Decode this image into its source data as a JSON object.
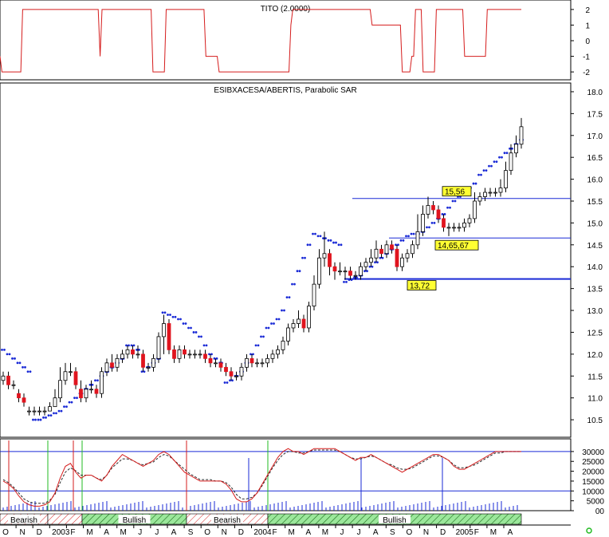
{
  "colors": {
    "up": "#ffffff",
    "down": "#e0141e",
    "candle_edge": "#000000",
    "sar": "#1a2ad6",
    "level_line": "#1a2ad6",
    "tito": "#d51c1c",
    "stoch_k": "#d51c1c",
    "stoch_d": "#2a2a2a",
    "marker_green": "#22bb22",
    "marker_red": "#d51c1c",
    "volume": "#1a2ad6",
    "label_bg": "#ffff33",
    "band_fill": "#9be79b",
    "band_stroke": "#1e6e1e"
  },
  "tito_panel": {
    "title": "TITO (2.0000)",
    "ylim": [
      -2.3,
      2.3
    ],
    "ticks": [
      "2",
      "1",
      "0",
      "-1",
      "-2"
    ],
    "tick_values": [
      2,
      1,
      0,
      -1,
      -2
    ],
    "values": [
      -1,
      -2,
      -2,
      -2,
      -2,
      -2,
      -2,
      -2,
      -2,
      -2,
      -2,
      -2,
      2,
      2,
      2,
      2,
      2,
      2,
      2,
      2,
      2,
      2,
      2,
      2,
      2,
      2,
      2,
      2,
      2,
      2,
      2,
      2,
      2,
      2,
      2,
      2,
      2,
      2,
      2,
      2,
      2,
      2,
      2,
      2,
      2,
      2,
      2,
      2,
      2,
      2,
      2,
      2,
      2,
      -1,
      2,
      2,
      2,
      2,
      2,
      2,
      2,
      2,
      2,
      2,
      2,
      2,
      2,
      2,
      2,
      2,
      2,
      2,
      2,
      2,
      2,
      2,
      2,
      2,
      2,
      2,
      2,
      -2,
      -2,
      -2,
      -2,
      -2,
      -2,
      -2,
      2,
      2,
      2,
      2,
      2,
      2,
      2,
      2,
      2,
      2,
      2,
      2,
      2,
      2,
      2,
      2,
      2,
      2,
      2,
      2,
      2,
      -1,
      -1,
      -1,
      -1,
      -1,
      -1,
      -1,
      -2,
      -2,
      -2,
      -2,
      -2,
      -2,
      -2,
      -2,
      -2,
      -2,
      -2,
      -2,
      -2,
      -2,
      -2,
      -2,
      -2,
      -2,
      -2,
      -2,
      -2,
      -2,
      -2,
      -2,
      -2,
      -2,
      -2,
      -2,
      -2,
      -2,
      -2,
      -2,
      -2,
      -2,
      -2,
      -2,
      -2,
      -2,
      1,
      2,
      2,
      2,
      2,
      2,
      2,
      2,
      2,
      2,
      2,
      2,
      2,
      2,
      2,
      2,
      2,
      2,
      2,
      2,
      2,
      2,
      2,
      2,
      2,
      2,
      2,
      2,
      2,
      2,
      2,
      2,
      2,
      2,
      2,
      2,
      2,
      2,
      2,
      2,
      2,
      2,
      2,
      1,
      1,
      1,
      1,
      1,
      1,
      1,
      1,
      1,
      1,
      1,
      1,
      1,
      1,
      1,
      1,
      -2,
      -2,
      -2,
      -2,
      -2,
      -1,
      -1,
      2,
      2,
      2,
      2,
      -2,
      -2,
      -2,
      -2,
      -2,
      -2,
      -2,
      2,
      2,
      2,
      2,
      2,
      2,
      2,
      2,
      2,
      2,
      2,
      2,
      2,
      2,
      2,
      -1,
      -1,
      -1,
      -1,
      -1,
      -1,
      -1,
      -1,
      -1,
      -1,
      -1,
      -1,
      2,
      2,
      2,
      2,
      2,
      2,
      2,
      2,
      2,
      2,
      2,
      2,
      2,
      2,
      2,
      2,
      2,
      2,
      2
    ]
  },
  "chart_data": {
    "type": "candlestick",
    "title": "ESIBXACESA/ABERTIS, Parabolic SAR",
    "ylim": [
      10.1,
      18.2
    ],
    "yticks": [
      "18.0",
      "17.5",
      "17.0",
      "16.5",
      "16.0",
      "15.5",
      "15.0",
      "14.5",
      "14.0",
      "13.5",
      "13.0",
      "12.5",
      "12.0",
      "11.5",
      "11.0",
      "10.5"
    ],
    "ytick_values": [
      18.0,
      17.5,
      17.0,
      16.5,
      16.0,
      15.5,
      15.0,
      14.5,
      14.0,
      13.5,
      13.0,
      12.5,
      12.0,
      11.5,
      11.0,
      10.5
    ],
    "close": [
      11.5,
      11.3,
      11.3,
      11.0,
      10.9,
      10.7,
      10.7,
      10.7,
      10.7,
      10.8,
      11.0,
      11.4,
      11.6,
      11.6,
      11.3,
      11.0,
      11.2,
      11.2,
      11.1,
      11.6,
      11.8,
      11.7,
      11.9,
      12.0,
      12.1,
      12.0,
      12.0,
      11.7,
      11.7,
      11.9,
      12.4,
      12.7,
      12.1,
      11.9,
      12.1,
      12.0,
      12.0,
      12.0,
      12.0,
      11.9,
      11.8,
      11.8,
      11.7,
      11.6,
      11.5,
      11.5,
      11.7,
      11.9,
      11.8,
      11.8,
      11.8,
      11.9,
      12.0,
      12.1,
      12.3,
      12.6,
      12.7,
      12.8,
      12.6,
      13.1,
      13.6,
      14.2,
      14.3,
      14.0,
      13.9,
      13.9,
      13.9,
      13.8,
      13.8,
      14.0,
      14.1,
      14.2,
      14.4,
      14.3,
      14.5,
      14.4,
      14.0,
      14.2,
      14.3,
      14.5,
      14.8,
      15.2,
      15.4,
      15.3,
      15.1,
      14.9,
      14.9,
      14.9,
      14.9,
      15.0,
      15.1,
      15.5,
      15.6,
      15.7,
      15.7,
      15.7,
      15.8,
      16.2,
      16.6,
      16.8,
      17.2
    ],
    "open": [
      11.4,
      11.5,
      11.3,
      11.1,
      11.0,
      10.7,
      10.7,
      10.7,
      10.7,
      10.7,
      10.8,
      11.0,
      11.4,
      11.6,
      11.6,
      11.2,
      11.0,
      11.2,
      11.2,
      11.1,
      11.6,
      11.8,
      11.7,
      11.9,
      12.0,
      12.1,
      12.0,
      12.0,
      11.7,
      11.7,
      11.9,
      12.4,
      12.7,
      12.1,
      11.9,
      12.1,
      12.0,
      12.0,
      12.0,
      12.0,
      11.9,
      11.8,
      11.8,
      11.7,
      11.6,
      11.5,
      11.5,
      11.7,
      11.9,
      11.8,
      11.8,
      11.8,
      11.9,
      12.0,
      12.1,
      12.3,
      12.6,
      12.7,
      12.8,
      12.6,
      13.1,
      13.6,
      14.2,
      14.3,
      14.0,
      13.9,
      13.9,
      13.9,
      13.8,
      13.8,
      14.0,
      14.1,
      14.2,
      14.4,
      14.3,
      14.5,
      14.4,
      14.0,
      14.2,
      14.3,
      14.5,
      14.8,
      15.2,
      15.4,
      15.3,
      15.1,
      14.9,
      14.9,
      14.9,
      14.9,
      15.0,
      15.1,
      15.5,
      15.6,
      15.7,
      15.7,
      15.7,
      15.8,
      16.2,
      16.6,
      16.8
    ],
    "high": [
      11.6,
      11.6,
      11.4,
      11.2,
      11.1,
      10.8,
      10.8,
      10.8,
      10.8,
      10.9,
      11.2,
      11.7,
      11.8,
      11.8,
      11.7,
      11.4,
      11.3,
      11.4,
      11.3,
      11.7,
      11.9,
      12.0,
      12.0,
      12.1,
      12.2,
      12.2,
      12.2,
      12.1,
      11.8,
      12.0,
      12.5,
      12.9,
      12.8,
      12.2,
      12.2,
      12.2,
      12.1,
      12.1,
      12.1,
      12.1,
      12.0,
      11.9,
      11.9,
      11.8,
      11.7,
      11.6,
      11.8,
      12.0,
      12.0,
      11.9,
      11.9,
      12.0,
      12.1,
      12.2,
      12.4,
      12.7,
      12.8,
      13.0,
      12.9,
      13.2,
      13.8,
      14.4,
      14.8,
      14.4,
      14.1,
      14.1,
      14.0,
      14.0,
      13.9,
      14.1,
      14.2,
      14.4,
      14.6,
      14.5,
      14.6,
      14.6,
      14.5,
      14.3,
      14.4,
      14.6,
      15.2,
      15.4,
      15.6,
      15.5,
      15.4,
      15.2,
      15.0,
      15.0,
      15.0,
      15.1,
      15.2,
      15.7,
      15.7,
      15.8,
      15.8,
      15.8,
      16.0,
      16.4,
      16.8,
      17.0,
      17.4
    ],
    "low": [
      11.3,
      11.2,
      11.2,
      10.9,
      10.8,
      10.6,
      10.6,
      10.6,
      10.6,
      10.7,
      10.8,
      10.9,
      11.3,
      11.5,
      11.2,
      10.9,
      10.9,
      11.1,
      11.0,
      11.0,
      11.5,
      11.6,
      11.6,
      11.8,
      11.9,
      11.9,
      11.9,
      11.6,
      11.6,
      11.6,
      11.8,
      12.0,
      12.0,
      11.8,
      11.8,
      11.9,
      11.9,
      11.9,
      11.9,
      11.8,
      11.7,
      11.7,
      11.6,
      11.5,
      11.4,
      11.4,
      11.4,
      11.6,
      11.7,
      11.7,
      11.7,
      11.7,
      11.8,
      11.9,
      12.0,
      12.2,
      12.5,
      12.6,
      12.5,
      12.5,
      13.0,
      13.5,
      14.0,
      13.8,
      13.7,
      13.8,
      13.7,
      13.7,
      13.7,
      13.7,
      13.9,
      14.0,
      14.1,
      14.2,
      14.2,
      14.3,
      13.9,
      13.9,
      14.1,
      14.2,
      14.4,
      14.7,
      15.1,
      15.2,
      15.0,
      14.8,
      14.7,
      14.8,
      14.8,
      14.8,
      14.9,
      15.0,
      15.4,
      15.5,
      15.6,
      15.6,
      15.6,
      15.7,
      16.1,
      16.5,
      16.7
    ],
    "sar": [
      12.1,
      12.0,
      11.9,
      11.8,
      11.7,
      11.6,
      10.5,
      10.5,
      10.55,
      10.6,
      10.65,
      10.7,
      10.8,
      10.9,
      11.0,
      11.1,
      11.2,
      11.3,
      11.4,
      11.5,
      11.6,
      11.7,
      11.8,
      11.9,
      12.2,
      12.2,
      12.1,
      11.6,
      11.7,
      11.8,
      11.9,
      12.95,
      12.9,
      12.85,
      12.8,
      12.7,
      12.6,
      12.5,
      12.4,
      12.2,
      12.0,
      11.9,
      11.8,
      11.35,
      11.4,
      11.5,
      11.6,
      11.8,
      12.0,
      12.2,
      12.4,
      12.6,
      12.7,
      12.8,
      13.0,
      13.3,
      13.6,
      13.9,
      14.2,
      14.5,
      14.75,
      14.7,
      14.65,
      14.6,
      14.55,
      14.5,
      13.65,
      13.7,
      13.75,
      13.8,
      13.9,
      14.0,
      14.1,
      14.2,
      14.3,
      14.4,
      14.5,
      14.6,
      14.7,
      14.75,
      14.75,
      14.8,
      14.9,
      15.0,
      15.1,
      15.2,
      15.35,
      15.5,
      15.6,
      15.7,
      15.8,
      15.9,
      16.1,
      16.2,
      16.3,
      16.4,
      16.5,
      16.6,
      16.7,
      16.8,
      16.9
    ],
    "levels": [
      {
        "value": 15.56,
        "label": "15,56"
      },
      {
        "value": 14.6567,
        "label": "14,65,67"
      },
      {
        "value": 13.72,
        "label": "13,72"
      }
    ],
    "stoch": {
      "ticks": [
        "30000",
        "25000",
        "20000",
        "15000",
        "10000",
        "5000",
        "00"
      ],
      "tick_values": [
        30000,
        25000,
        20000,
        15000,
        10000,
        5000,
        0
      ],
      "ylim": [
        0,
        34000
      ],
      "k": [
        20,
        18,
        15,
        10,
        6,
        4,
        3,
        3,
        4,
        6,
        12,
        22,
        30,
        32,
        26,
        22,
        24,
        24,
        22,
        20,
        24,
        30,
        34,
        38,
        36,
        34,
        32,
        30,
        32,
        34,
        38,
        40,
        38,
        34,
        30,
        26,
        24,
        22,
        20,
        20,
        20,
        20,
        20,
        18,
        14,
        8,
        6,
        6,
        8,
        12,
        18,
        24,
        30,
        36,
        40,
        42,
        40,
        40,
        38,
        40,
        42,
        42,
        42,
        42,
        42,
        40,
        38,
        36,
        34,
        36,
        36,
        38,
        36,
        34,
        32,
        30,
        28,
        26,
        28,
        30,
        32,
        34,
        36,
        38,
        38,
        36,
        34,
        30,
        28,
        28,
        30,
        32,
        34,
        36,
        38,
        40,
        40,
        40,
        40,
        40,
        40
      ],
      "d": [
        21,
        19,
        16,
        12,
        8,
        6,
        5,
        5,
        5,
        7,
        11,
        19,
        26,
        29,
        27,
        24,
        24,
        24,
        22,
        21,
        24,
        29,
        32,
        35,
        35,
        34,
        32,
        31,
        32,
        33,
        36,
        38,
        37,
        34,
        31,
        28,
        25,
        23,
        21,
        21,
        21,
        20,
        20,
        19,
        16,
        11,
        8,
        8,
        9,
        12,
        17,
        23,
        29,
        34,
        38,
        40,
        40,
        39,
        39,
        40,
        41,
        41,
        41,
        41,
        41,
        40,
        38,
        36,
        35,
        35,
        36,
        37,
        36,
        34,
        32,
        31,
        29,
        28,
        28,
        29,
        31,
        33,
        35,
        37,
        37,
        36,
        34,
        31,
        29,
        29,
        30,
        31,
        33,
        35,
        37,
        39,
        39,
        40,
        40,
        40,
        40
      ]
    },
    "bands": [
      {
        "label": "Bearish",
        "kind": "bear"
      },
      {
        "label": "",
        "kind": "bear"
      },
      {
        "label": "Bullish",
        "kind": "bull"
      },
      {
        "label": "Bearish",
        "kind": "bear"
      },
      {
        "label": "",
        "kind": "bear"
      },
      {
        "label": "Bullish",
        "kind": "bull"
      }
    ],
    "months": [
      "O",
      "N",
      "D",
      "2003",
      "F",
      "M",
      "A",
      "M",
      "J",
      "J",
      "A",
      "S",
      "O",
      "N",
      "D",
      "2004",
      "F",
      "M",
      "A",
      "M",
      "J",
      "J",
      "A",
      "S",
      "O",
      "N",
      "D",
      "2005",
      "F",
      "M",
      "A"
    ]
  }
}
